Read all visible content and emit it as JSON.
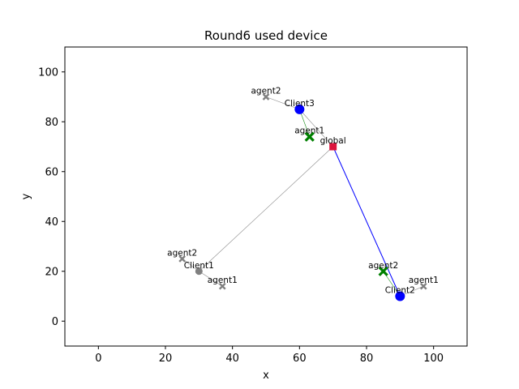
{
  "chart_data": {
    "type": "scatter",
    "title": "Round6 used device",
    "xlabel": "x",
    "ylabel": "y",
    "xlim": [
      -10,
      110
    ],
    "ylim": [
      -10,
      110
    ],
    "xticks": [
      0,
      20,
      40,
      60,
      80,
      100
    ],
    "yticks": [
      0,
      20,
      40,
      60,
      80,
      100
    ],
    "grid": false,
    "points": [
      {
        "label": "global",
        "x": 70,
        "y": 70,
        "marker": "square",
        "color": "#dc143c"
      },
      {
        "label": "Client1",
        "x": 30,
        "y": 20,
        "marker": "circle",
        "color": "#808080"
      },
      {
        "label": "Client2",
        "x": 90,
        "y": 10,
        "marker": "circle",
        "color": "#0000ff"
      },
      {
        "label": "Client3",
        "x": 60,
        "y": 85,
        "marker": "circle",
        "color": "#0000ff"
      },
      {
        "label": "agent1",
        "x": 37,
        "y": 14,
        "marker": "x",
        "color": "#808080"
      },
      {
        "label": "agent2",
        "x": 25,
        "y": 25,
        "marker": "x",
        "color": "#808080"
      },
      {
        "label": "agent1",
        "x": 97,
        "y": 14,
        "marker": "x",
        "color": "#808080"
      },
      {
        "label": "agent2",
        "x": 85,
        "y": 20,
        "marker": "x",
        "color": "#008000"
      },
      {
        "label": "agent1",
        "x": 63,
        "y": 74,
        "marker": "x",
        "color": "#008000"
      },
      {
        "label": "agent2",
        "x": 50,
        "y": 90,
        "marker": "x",
        "color": "#808080"
      }
    ],
    "edges": [
      {
        "from": [
          70,
          70
        ],
        "to": [
          30,
          20
        ],
        "color": "#808080"
      },
      {
        "from": [
          70,
          70
        ],
        "to": [
          90,
          10
        ],
        "color": "#0000ff"
      },
      {
        "from": [
          70,
          70
        ],
        "to": [
          60,
          85
        ],
        "color": "#808080"
      },
      {
        "from": [
          30,
          20
        ],
        "to": [
          37,
          14
        ],
        "color": "#808080"
      },
      {
        "from": [
          30,
          20
        ],
        "to": [
          25,
          25
        ],
        "color": "#808080"
      },
      {
        "from": [
          90,
          10
        ],
        "to": [
          97,
          14
        ],
        "color": "#808080"
      },
      {
        "from": [
          90,
          10
        ],
        "to": [
          85,
          20
        ],
        "color": "#008000"
      },
      {
        "from": [
          60,
          85
        ],
        "to": [
          63,
          74
        ],
        "color": "#008000"
      },
      {
        "from": [
          60,
          85
        ],
        "to": [
          50,
          90
        ],
        "color": "#808080"
      }
    ]
  }
}
